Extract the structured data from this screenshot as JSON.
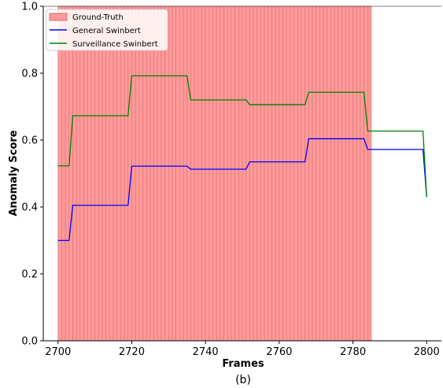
{
  "chart_data": {
    "type": "line",
    "xlabel": "Frames",
    "ylabel": "Anomaly Score",
    "caption": "(b)",
    "xlim": [
      2696,
      2804
    ],
    "ylim": [
      0.0,
      1.0
    ],
    "xticks": [
      "2700",
      "2720",
      "2740",
      "2760",
      "2780",
      "2800"
    ],
    "yticks": [
      "0.0",
      "0.2",
      "0.4",
      "0.6",
      "0.8",
      "1.0"
    ],
    "legend_position": "top-left",
    "ground_truth": {
      "name": "Ground-Truth",
      "x_range": [
        2700,
        2785
      ],
      "color": "#ff9a9a",
      "edge_color": "#d97070"
    },
    "series": [
      {
        "name": "General Swinbert",
        "color": "#0000ff",
        "points": [
          [
            2700,
            0.3
          ],
          [
            2703,
            0.3
          ],
          [
            2704,
            0.405
          ],
          [
            2719,
            0.405
          ],
          [
            2720,
            0.522
          ],
          [
            2735,
            0.522
          ],
          [
            2736,
            0.513
          ],
          [
            2751,
            0.513
          ],
          [
            2752,
            0.535
          ],
          [
            2767,
            0.535
          ],
          [
            2768,
            0.604
          ],
          [
            2783,
            0.604
          ],
          [
            2784,
            0.572
          ],
          [
            2799,
            0.572
          ],
          [
            2800,
            0.43
          ]
        ]
      },
      {
        "name": "Surveillance Swinbert",
        "color": "#008000",
        "points": [
          [
            2700,
            0.523
          ],
          [
            2703,
            0.523
          ],
          [
            2704,
            0.673
          ],
          [
            2719,
            0.673
          ],
          [
            2720,
            0.792
          ],
          [
            2735,
            0.792
          ],
          [
            2736,
            0.72
          ],
          [
            2751,
            0.72
          ],
          [
            2752,
            0.706
          ],
          [
            2767,
            0.706
          ],
          [
            2768,
            0.743
          ],
          [
            2783,
            0.743
          ],
          [
            2784,
            0.627
          ],
          [
            2799,
            0.627
          ],
          [
            2800,
            0.43
          ]
        ]
      }
    ]
  }
}
